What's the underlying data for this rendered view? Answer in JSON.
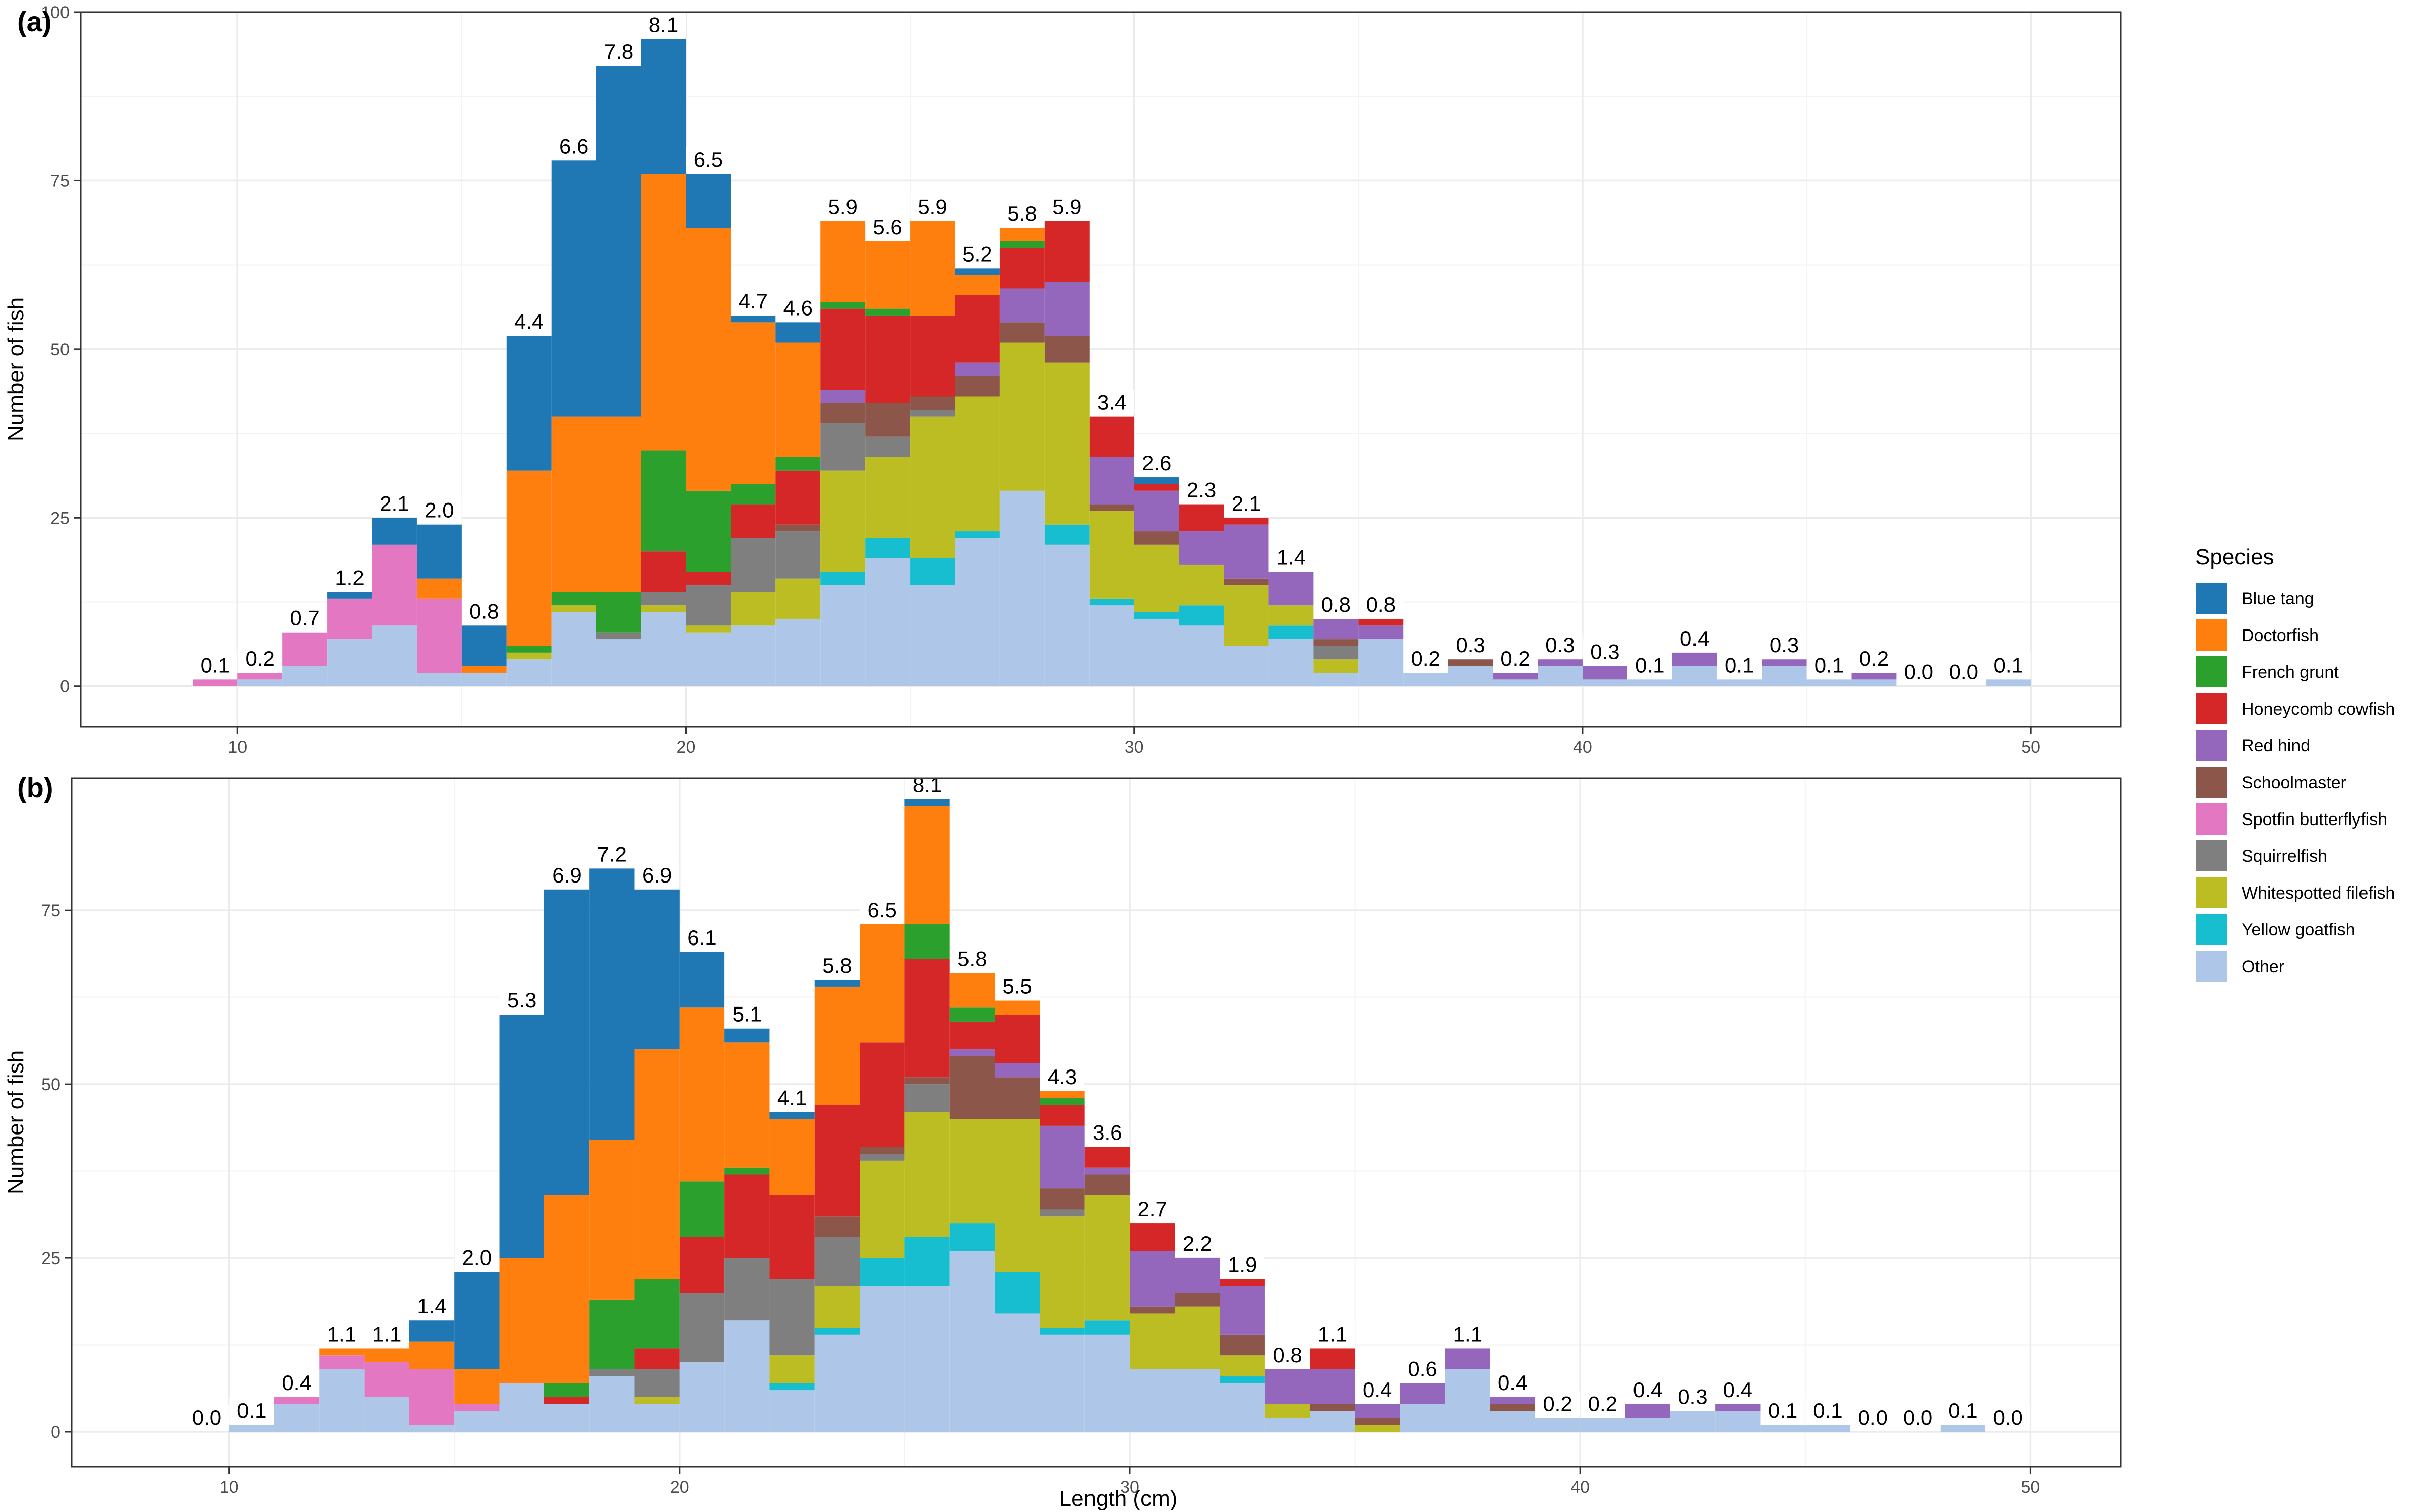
{
  "chart_data": [
    {
      "type": "bar",
      "panel": "(a)",
      "stacked": true,
      "xlabel": "",
      "ylabel": "Number of fish",
      "xlim": [
        6.5,
        52
      ],
      "ylim": [
        -6,
        100
      ],
      "xticks": [
        10,
        20,
        30,
        40,
        50
      ],
      "yticks": [
        0,
        25,
        50,
        75,
        100
      ],
      "bin_width": 1,
      "grid": true,
      "bins": [
        {
          "x": 9.5,
          "label": "0.1",
          "counts": {
            "Spotfin butterflyfish": 1
          }
        },
        {
          "x": 10.5,
          "label": "0.2",
          "counts": {
            "Other": 1,
            "Spotfin butterflyfish": 1
          }
        },
        {
          "x": 11.5,
          "label": "0.7",
          "counts": {
            "Other": 3,
            "Spotfin butterflyfish": 5
          }
        },
        {
          "x": 12.5,
          "label": "1.2",
          "counts": {
            "Other": 7,
            "Spotfin butterflyfish": 6,
            "Blue tang": 1
          }
        },
        {
          "x": 13.5,
          "label": "2.1",
          "counts": {
            "Other": 9,
            "Spotfin butterflyfish": 12,
            "Blue tang": 4
          }
        },
        {
          "x": 14.5,
          "label": "2.0",
          "counts": {
            "Other": 2,
            "Spotfin butterflyfish": 11,
            "Doctorfish": 3,
            "Blue tang": 8
          }
        },
        {
          "x": 15.5,
          "label": "0.8",
          "counts": {
            "Doctorfish": 1,
            "Other": 2,
            "Blue tang": 6
          }
        },
        {
          "x": 16.5,
          "label": "4.4",
          "counts": {
            "Other": 4,
            "Whitespotted filefish": 1,
            "French grunt": 1,
            "Doctorfish": 26,
            "Blue tang": 20
          }
        },
        {
          "x": 17.5,
          "label": "6.6",
          "counts": {
            "Other": 11,
            "Whitespotted filefish": 1,
            "French grunt": 2,
            "Doctorfish": 26,
            "Blue tang": 38
          }
        },
        {
          "x": 18.5,
          "label": "7.8",
          "counts": {
            "Other": 7,
            "Squirrelfish": 1,
            "French grunt": 6,
            "Doctorfish": 26,
            "Blue tang": 52
          }
        },
        {
          "x": 19.5,
          "label": "8.1",
          "counts": {
            "Other": 11,
            "Whitespotted filefish": 1,
            "Squirrelfish": 2,
            "Honeycomb cowfish": 6,
            "French grunt": 15,
            "Doctorfish": 41,
            "Blue tang": 20
          }
        },
        {
          "x": 20.5,
          "label": "6.5",
          "counts": {
            "Other": 8,
            "Whitespotted filefish": 1,
            "Squirrelfish": 6,
            "Honeycomb cowfish": 2,
            "French grunt": 12,
            "Doctorfish": 39,
            "Blue tang": 8
          }
        },
        {
          "x": 21.5,
          "label": "4.7",
          "counts": {
            "Other": 9,
            "Whitespotted filefish": 5,
            "Squirrelfish": 8,
            "Honeycomb cowfish": 5,
            "French grunt": 3,
            "Doctorfish": 24,
            "Blue tang": 1
          }
        },
        {
          "x": 22.5,
          "label": "4.6",
          "counts": {
            "Other": 10,
            "Whitespotted filefish": 6,
            "Squirrelfish": 7,
            "Schoolmaster": 1,
            "Honeycomb cowfish": 8,
            "French grunt": 2,
            "Doctorfish": 17,
            "Blue tang": 3
          }
        },
        {
          "x": 23.5,
          "label": "5.9",
          "counts": {
            "Other": 15,
            "Yellow goatfish": 2,
            "Whitespotted filefish": 15,
            "Squirrelfish": 7,
            "Schoolmaster": 3,
            "Red hind": 2,
            "Honeycomb cowfish": 12,
            "French grunt": 1,
            "Doctorfish": 12
          }
        },
        {
          "x": 24.5,
          "label": "5.6",
          "counts": {
            "Other": 19,
            "Yellow goatfish": 3,
            "Whitespotted filefish": 12,
            "Squirrelfish": 3,
            "Schoolmaster": 5,
            "Honeycomb cowfish": 13,
            "French grunt": 1,
            "Doctorfish": 10
          }
        },
        {
          "x": 25.5,
          "label": "5.9",
          "counts": {
            "Other": 15,
            "Yellow goatfish": 4,
            "Whitespotted filefish": 21,
            "Squirrelfish": 1,
            "Schoolmaster": 2,
            "Honeycomb cowfish": 12,
            "Doctorfish": 14
          }
        },
        {
          "x": 26.5,
          "label": "5.2",
          "counts": {
            "Other": 22,
            "Yellow goatfish": 1,
            "Whitespotted filefish": 20,
            "Schoolmaster": 3,
            "Red hind": 2,
            "Honeycomb cowfish": 10,
            "Doctorfish": 3,
            "Blue tang": 1
          }
        },
        {
          "x": 27.5,
          "label": "5.8",
          "counts": {
            "Other": 29,
            "Whitespotted filefish": 22,
            "Schoolmaster": 3,
            "Red hind": 5,
            "Honeycomb cowfish": 6,
            "French grunt": 1,
            "Doctorfish": 2
          }
        },
        {
          "x": 28.5,
          "label": "5.9",
          "counts": {
            "Other": 21,
            "Yellow goatfish": 3,
            "Whitespotted filefish": 24,
            "Schoolmaster": 4,
            "Red hind": 8,
            "Honeycomb cowfish": 9
          }
        },
        {
          "x": 29.5,
          "label": "3.4",
          "counts": {
            "Other": 12,
            "Yellow goatfish": 1,
            "Whitespotted filefish": 13,
            "Schoolmaster": 1,
            "Red hind": 7,
            "Honeycomb cowfish": 6
          }
        },
        {
          "x": 30.5,
          "label": "2.6",
          "counts": {
            "Other": 10,
            "Yellow goatfish": 1,
            "Whitespotted filefish": 10,
            "Schoolmaster": 2,
            "Red hind": 6,
            "Honeycomb cowfish": 1,
            "Blue tang": 1
          }
        },
        {
          "x": 31.5,
          "label": "2.3",
          "counts": {
            "Other": 9,
            "Yellow goatfish": 3,
            "Whitespotted filefish": 6,
            "Red hind": 5,
            "Honeycomb cowfish": 4
          }
        },
        {
          "x": 32.5,
          "label": "2.1",
          "counts": {
            "Other": 6,
            "Whitespotted filefish": 9,
            "Schoolmaster": 1,
            "Red hind": 8,
            "Honeycomb cowfish": 1
          }
        },
        {
          "x": 33.5,
          "label": "1.4",
          "counts": {
            "Other": 7,
            "Yellow goatfish": 2,
            "Whitespotted filefish": 3,
            "Red hind": 5
          }
        },
        {
          "x": 34.5,
          "label": "0.8",
          "counts": {
            "Other": 2,
            "Whitespotted filefish": 2,
            "Squirrelfish": 2,
            "Schoolmaster": 1,
            "Red hind": 3
          }
        },
        {
          "x": 35.5,
          "label": "0.8",
          "counts": {
            "Other": 7,
            "Red hind": 2,
            "Honeycomb cowfish": 1
          }
        },
        {
          "x": 36.5,
          "label": "0.2",
          "counts": {
            "Other": 2
          }
        },
        {
          "x": 37.5,
          "label": "0.3",
          "counts": {
            "Other": 3,
            "Schoolmaster": 1
          }
        },
        {
          "x": 38.5,
          "label": "0.2",
          "counts": {
            "Other": 1,
            "Red hind": 1
          }
        },
        {
          "x": 39.5,
          "label": "0.3",
          "counts": {
            "Other": 3,
            "Red hind": 1
          }
        },
        {
          "x": 40.5,
          "label": "0.3",
          "counts": {
            "Other": 1,
            "Red hind": 2
          }
        },
        {
          "x": 41.5,
          "label": "0.1",
          "counts": {
            "Other": 1
          }
        },
        {
          "x": 42.5,
          "label": "0.4",
          "counts": {
            "Other": 3,
            "Red hind": 2
          }
        },
        {
          "x": 43.5,
          "label": "0.1",
          "counts": {
            "Other": 1
          }
        },
        {
          "x": 44.5,
          "label": "0.3",
          "counts": {
            "Other": 3,
            "Red hind": 1
          }
        },
        {
          "x": 45.5,
          "label": "0.1",
          "counts": {
            "Other": 1
          }
        },
        {
          "x": 46.5,
          "label": "0.2",
          "counts": {
            "Other": 1,
            "Red hind": 1
          }
        },
        {
          "x": 47.5,
          "label": "0.0",
          "counts": {}
        },
        {
          "x": 48.5,
          "label": "0.0",
          "counts": {}
        },
        {
          "x": 49.5,
          "label": "0.1",
          "counts": {
            "Other": 1
          }
        }
      ]
    },
    {
      "type": "bar",
      "panel": "(b)",
      "stacked": true,
      "xlabel": "Length (cm)",
      "ylabel": "Number of fish",
      "xlim": [
        6.5,
        52
      ],
      "ylim": [
        -5,
        94
      ],
      "xticks": [
        10,
        20,
        30,
        40,
        50
      ],
      "yticks": [
        0,
        25,
        50,
        75
      ],
      "bin_width": 1,
      "grid": true,
      "bins": [
        {
          "x": 9.5,
          "label": "0.0",
          "counts": {}
        },
        {
          "x": 10.5,
          "label": "0.1",
          "counts": {
            "Other": 1
          }
        },
        {
          "x": 11.5,
          "label": "0.4",
          "counts": {
            "Other": 4,
            "Spotfin butterflyfish": 1
          }
        },
        {
          "x": 12.5,
          "label": "1.1",
          "counts": {
            "Other": 9,
            "Spotfin butterflyfish": 2,
            "Doctorfish": 1
          }
        },
        {
          "x": 13.5,
          "label": "1.1",
          "counts": {
            "Other": 5,
            "Spotfin butterflyfish": 5,
            "Doctorfish": 2
          }
        },
        {
          "x": 14.5,
          "label": "1.4",
          "counts": {
            "Other": 1,
            "Spotfin butterflyfish": 8,
            "Doctorfish": 4,
            "Blue tang": 3
          }
        },
        {
          "x": 15.5,
          "label": "2.0",
          "counts": {
            "Other": 3,
            "Spotfin butterflyfish": 1,
            "Doctorfish": 5,
            "Blue tang": 14
          }
        },
        {
          "x": 16.5,
          "label": "5.3",
          "counts": {
            "Other": 7,
            "Doctorfish": 18,
            "Blue tang": 35
          }
        },
        {
          "x": 17.5,
          "label": "6.9",
          "counts": {
            "Other": 4,
            "Honeycomb cowfish": 1,
            "French grunt": 2,
            "Doctorfish": 27,
            "Blue tang": 44
          }
        },
        {
          "x": 18.5,
          "label": "7.2",
          "counts": {
            "Other": 8,
            "Squirrelfish": 1,
            "French grunt": 10,
            "Doctorfish": 23,
            "Blue tang": 39
          }
        },
        {
          "x": 19.5,
          "label": "6.9",
          "counts": {
            "Other": 4,
            "Whitespotted filefish": 1,
            "Squirrelfish": 4,
            "Honeycomb cowfish": 3,
            "French grunt": 10,
            "Doctorfish": 33,
            "Blue tang": 23
          }
        },
        {
          "x": 20.5,
          "label": "6.1",
          "counts": {
            "Other": 10,
            "Squirrelfish": 10,
            "Honeycomb cowfish": 8,
            "French grunt": 8,
            "Doctorfish": 25,
            "Blue tang": 8
          }
        },
        {
          "x": 21.5,
          "label": "5.1",
          "counts": {
            "Other": 16,
            "Squirrelfish": 9,
            "Honeycomb cowfish": 12,
            "French grunt": 1,
            "Doctorfish": 18,
            "Blue tang": 2
          }
        },
        {
          "x": 22.5,
          "label": "4.1",
          "counts": {
            "Other": 6,
            "Yellow goatfish": 1,
            "Whitespotted filefish": 4,
            "Squirrelfish": 11,
            "Honeycomb cowfish": 12,
            "Doctorfish": 11,
            "Blue tang": 1
          }
        },
        {
          "x": 23.5,
          "label": "5.8",
          "counts": {
            "Other": 14,
            "Yellow goatfish": 1,
            "Whitespotted filefish": 6,
            "Squirrelfish": 7,
            "Schoolmaster": 3,
            "Honeycomb cowfish": 16,
            "Doctorfish": 17,
            "Blue tang": 1
          }
        },
        {
          "x": 24.5,
          "label": "6.5",
          "counts": {
            "Other": 21,
            "Yellow goatfish": 4,
            "Whitespotted filefish": 14,
            "Squirrelfish": 1,
            "Schoolmaster": 1,
            "Honeycomb cowfish": 15,
            "Doctorfish": 17
          }
        },
        {
          "x": 25.5,
          "label": "8.1",
          "counts": {
            "Other": 21,
            "Yellow goatfish": 7,
            "Whitespotted filefish": 18,
            "Squirrelfish": 4,
            "Schoolmaster": 1,
            "Honeycomb cowfish": 17,
            "French grunt": 5,
            "Doctorfish": 17,
            "Blue tang": 1
          }
        },
        {
          "x": 26.5,
          "label": "5.8",
          "counts": {
            "Other": 26,
            "Yellow goatfish": 4,
            "Whitespotted filefish": 15,
            "Schoolmaster": 9,
            "Red hind": 1,
            "Honeycomb cowfish": 4,
            "French grunt": 2,
            "Doctorfish": 5
          }
        },
        {
          "x": 27.5,
          "label": "5.5",
          "counts": {
            "Other": 17,
            "Yellow goatfish": 6,
            "Whitespotted filefish": 22,
            "Schoolmaster": 6,
            "Red hind": 2,
            "Honeycomb cowfish": 7,
            "Doctorfish": 2
          }
        },
        {
          "x": 28.5,
          "label": "4.3",
          "counts": {
            "Other": 14,
            "Yellow goatfish": 1,
            "Whitespotted filefish": 16,
            "Squirrelfish": 1,
            "Schoolmaster": 3,
            "Red hind": 9,
            "Honeycomb cowfish": 3,
            "French grunt": 1,
            "Doctorfish": 1
          }
        },
        {
          "x": 29.5,
          "label": "3.6",
          "counts": {
            "Other": 14,
            "Yellow goatfish": 2,
            "Whitespotted filefish": 18,
            "Schoolmaster": 3,
            "Red hind": 1,
            "Honeycomb cowfish": 3
          }
        },
        {
          "x": 30.5,
          "label": "2.7",
          "counts": {
            "Other": 9,
            "Whitespotted filefish": 8,
            "Schoolmaster": 1,
            "Red hind": 8,
            "Honeycomb cowfish": 4
          }
        },
        {
          "x": 31.5,
          "label": "2.2",
          "counts": {
            "Other": 9,
            "Whitespotted filefish": 9,
            "Schoolmaster": 2,
            "Red hind": 5
          }
        },
        {
          "x": 32.5,
          "label": "1.9",
          "counts": {
            "Other": 7,
            "Yellow goatfish": 1,
            "Whitespotted filefish": 3,
            "Schoolmaster": 3,
            "Red hind": 7,
            "Honeycomb cowfish": 1
          }
        },
        {
          "x": 33.5,
          "label": "0.8",
          "counts": {
            "Other": 2,
            "Whitespotted filefish": 2,
            "Red hind": 5
          }
        },
        {
          "x": 34.5,
          "label": "1.1",
          "counts": {
            "Other": 3,
            "Schoolmaster": 1,
            "Red hind": 5,
            "Honeycomb cowfish": 3
          }
        },
        {
          "x": 35.5,
          "label": "0.4",
          "counts": {
            "Whitespotted filefish": 1,
            "Schoolmaster": 1,
            "Red hind": 2
          }
        },
        {
          "x": 36.5,
          "label": "0.6",
          "counts": {
            "Other": 4,
            "Red hind": 3
          }
        },
        {
          "x": 37.5,
          "label": "1.1",
          "counts": {
            "Other": 9,
            "Red hind": 3
          }
        },
        {
          "x": 38.5,
          "label": "0.4",
          "counts": {
            "Other": 3,
            "Schoolmaster": 1,
            "Red hind": 1
          }
        },
        {
          "x": 39.5,
          "label": "0.2",
          "counts": {
            "Other": 2
          }
        },
        {
          "x": 40.5,
          "label": "0.2",
          "counts": {
            "Other": 2
          }
        },
        {
          "x": 41.5,
          "label": "0.4",
          "counts": {
            "Other": 2,
            "Red hind": 2
          }
        },
        {
          "x": 42.5,
          "label": "0.3",
          "counts": {
            "Other": 3
          }
        },
        {
          "x": 43.5,
          "label": "0.4",
          "counts": {
            "Other": 3,
            "Red hind": 1
          }
        },
        {
          "x": 44.5,
          "label": "0.1",
          "counts": {
            "Other": 1
          }
        },
        {
          "x": 45.5,
          "label": "0.1",
          "counts": {
            "Other": 1
          }
        },
        {
          "x": 46.5,
          "label": "0.0",
          "counts": {}
        },
        {
          "x": 47.5,
          "label": "0.0",
          "counts": {}
        },
        {
          "x": 48.5,
          "label": "0.1",
          "counts": {
            "Other": 1
          }
        },
        {
          "x": 49.5,
          "label": "0.0",
          "counts": {}
        }
      ]
    }
  ],
  "legend": {
    "title": "Species",
    "placement": "right",
    "items": [
      {
        "name": "Blue tang",
        "color": "#1f77b4"
      },
      {
        "name": "Doctorfish",
        "color": "#ff7f0e"
      },
      {
        "name": "French grunt",
        "color": "#2ca02c"
      },
      {
        "name": "Honeycomb cowfish",
        "color": "#d62728"
      },
      {
        "name": "Red hind",
        "color": "#9467bd"
      },
      {
        "name": "Schoolmaster",
        "color": "#8c564b"
      },
      {
        "name": "Spotfin butterflyfish",
        "color": "#e377c2"
      },
      {
        "name": "Squirrelfish",
        "color": "#7f7f7f"
      },
      {
        "name": "Whitespotted filefish",
        "color": "#bcbd22"
      },
      {
        "name": "Yellow goatfish",
        "color": "#17becf"
      },
      {
        "name": "Other",
        "color": "#aec7e8"
      }
    ]
  },
  "stack_order_bottom_to_top": [
    "Other",
    "Yellow goatfish",
    "Whitespotted filefish",
    "Squirrelfish",
    "Spotfin butterflyfish",
    "Schoolmaster",
    "Red hind",
    "Honeycomb cowfish",
    "French grunt",
    "Doctorfish",
    "Blue tang"
  ]
}
